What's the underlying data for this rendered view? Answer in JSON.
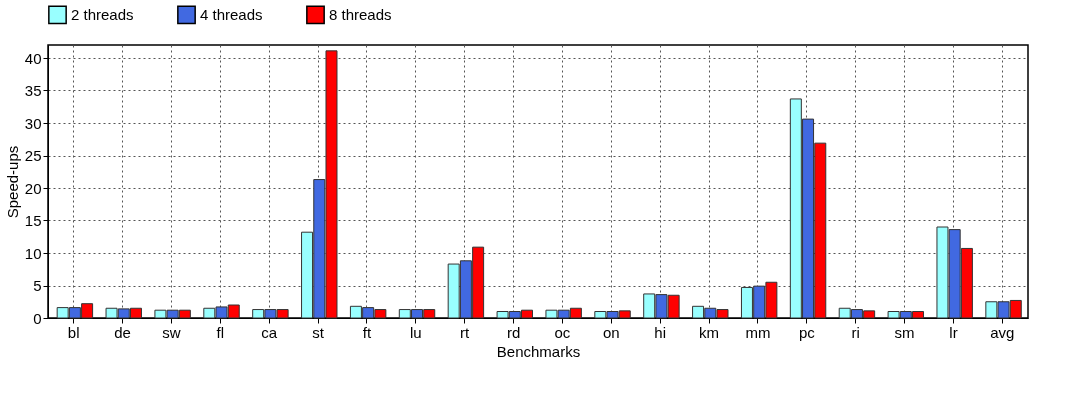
{
  "chart_data": {
    "type": "bar",
    "xlabel": "Benchmarks",
    "ylabel": "Speed-ups",
    "categories": [
      "bl",
      "de",
      "sw",
      "fl",
      "ca",
      "st",
      "ft",
      "lu",
      "rt",
      "rd",
      "oc",
      "on",
      "hi",
      "km",
      "mm",
      "pc",
      "ri",
      "sm",
      "lr",
      "avg"
    ],
    "series": [
      {
        "name": "2 threads",
        "color": "#99ffff",
        "values": [
          1.6,
          1.5,
          1.2,
          1.5,
          1.3,
          13.2,
          1.8,
          1.3,
          8.3,
          1.0,
          1.2,
          1.0,
          3.7,
          1.8,
          4.7,
          33.7,
          1.5,
          1.0,
          14.0,
          2.5
        ]
      },
      {
        "name": "4 threads",
        "color": "#4169e1",
        "values": [
          1.6,
          1.4,
          1.2,
          1.7,
          1.3,
          21.3,
          1.6,
          1.3,
          8.8,
          1.0,
          1.2,
          1.0,
          3.6,
          1.5,
          4.9,
          30.6,
          1.3,
          1.0,
          13.6,
          2.5
        ]
      },
      {
        "name": "8 threads",
        "color": "#ff0000",
        "values": [
          2.2,
          1.5,
          1.2,
          2.0,
          1.3,
          41.1,
          1.3,
          1.3,
          10.9,
          1.2,
          1.5,
          1.1,
          3.5,
          1.3,
          5.5,
          26.9,
          1.1,
          1.0,
          10.7,
          2.7
        ]
      }
    ],
    "ylim": [
      0,
      42
    ],
    "yticks": [
      0,
      5,
      10,
      15,
      20,
      25,
      30,
      35,
      40
    ],
    "grid": true,
    "legend": "top"
  }
}
